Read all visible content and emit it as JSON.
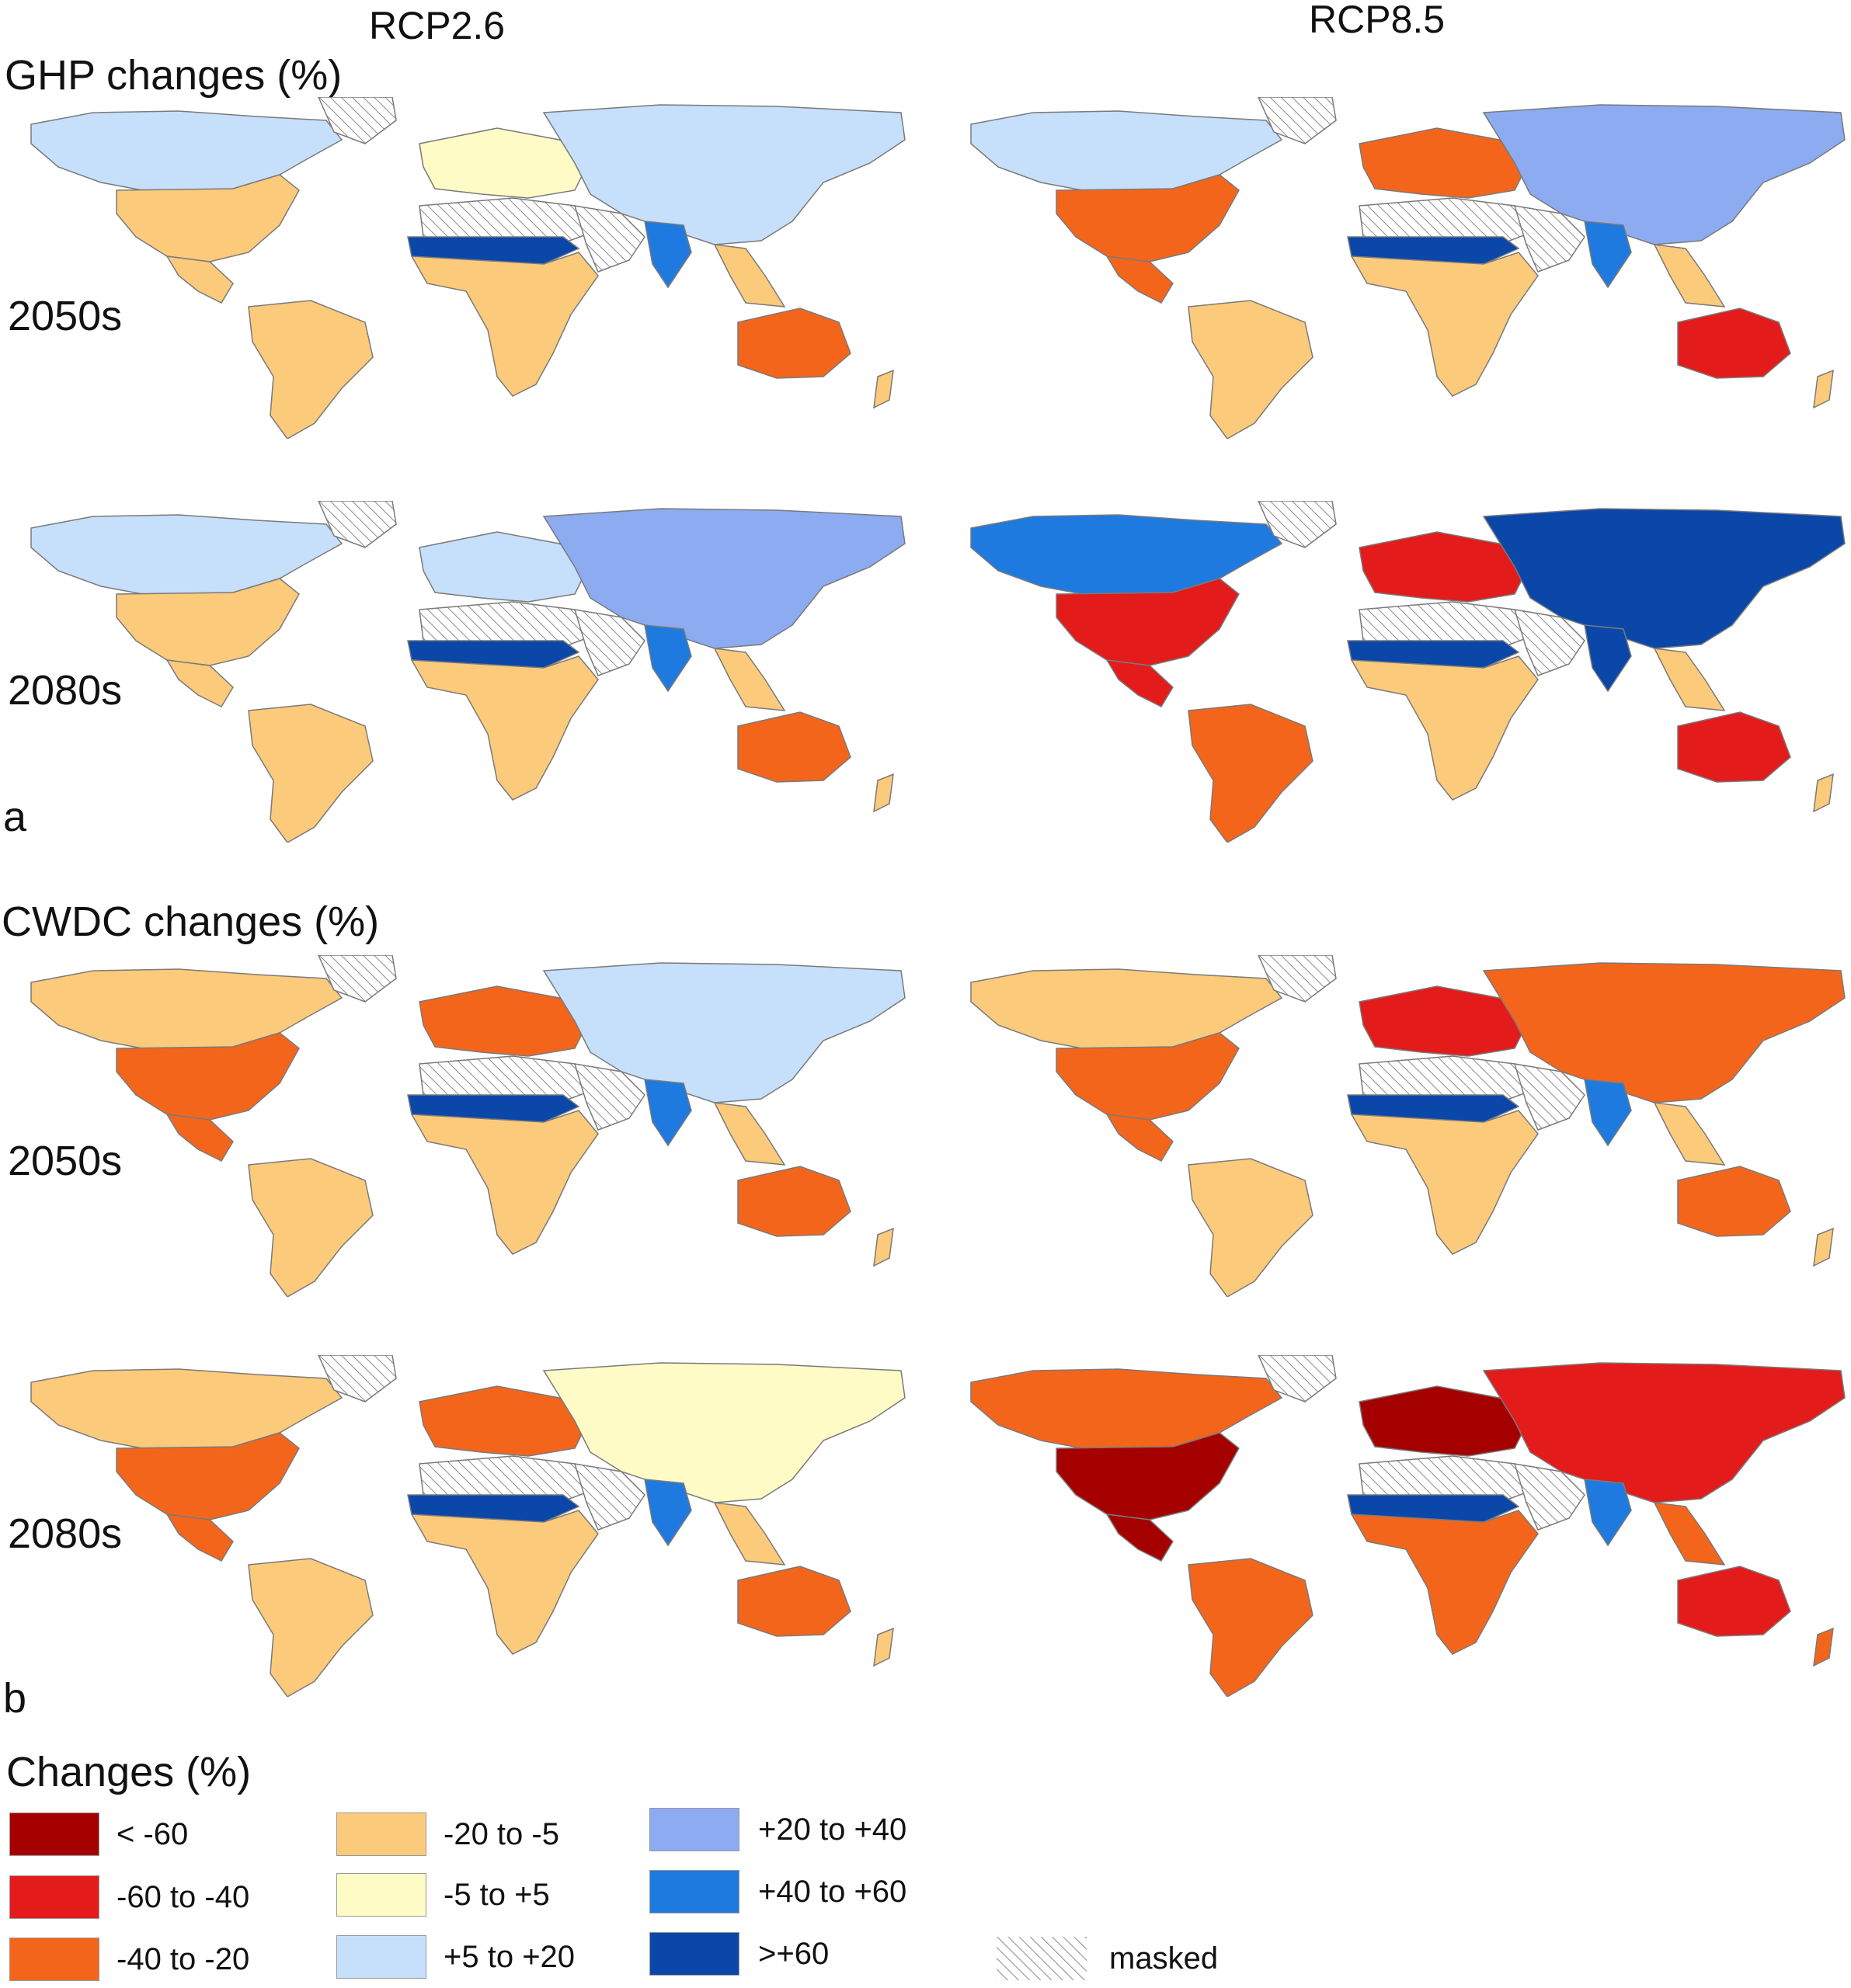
{
  "columns": [
    "RCP2.6",
    "RCP8.5"
  ],
  "sections": [
    {
      "title": "GHP changes (%)",
      "letter": "a",
      "rows": [
        "2050s",
        "2080s"
      ]
    },
    {
      "title": "CWDC changes (%)",
      "letter": "b",
      "rows": [
        "2050s",
        "2080s"
      ]
    }
  ],
  "legend": {
    "title": "Changes (%)",
    "classes": [
      {
        "label": "< -60",
        "color": "#a50000"
      },
      {
        "label": "-60 to -40",
        "color": "#e31b1b"
      },
      {
        "label": "-40 to -20",
        "color": "#f4651c"
      },
      {
        "label": "-20 to -5",
        "color": "#fbca7b"
      },
      {
        "label": "-5 to +5",
        "color": "#fefbc6"
      },
      {
        "label": "+5 to +20",
        "color": "#c6dffb"
      },
      {
        "label": "+20 to +40",
        "color": "#8cabf0"
      },
      {
        "label": "+40 to +60",
        "color": "#1f7adf"
      },
      {
        "label": ">+60",
        "color": "#0b47a8"
      }
    ],
    "masked_label": "masked"
  },
  "maps": [
    {
      "id": "ghp-2050-rcp26",
      "na": "#c6dffb",
      "us": "#fbca7b",
      "sa": "#fbca7b",
      "eu": "#fefbc6",
      "as": "#c6dffb",
      "af": "#fbca7b",
      "sahel": "#0b47a8",
      "au": "#f4651c",
      "in": "#1f7adf"
    },
    {
      "id": "ghp-2050-rcp85",
      "na": "#c6dffb",
      "us": "#f4651c",
      "sa": "#fbca7b",
      "eu": "#f4651c",
      "as": "#8cabf0",
      "af": "#fbca7b",
      "sahel": "#0b47a8",
      "au": "#e31b1b",
      "in": "#1f7adf"
    },
    {
      "id": "ghp-2080-rcp26",
      "na": "#c6dffb",
      "us": "#fbca7b",
      "sa": "#fbca7b",
      "eu": "#c6dffb",
      "as": "#8cabf0",
      "af": "#fbca7b",
      "sahel": "#0b47a8",
      "au": "#f4651c",
      "in": "#1f7adf"
    },
    {
      "id": "ghp-2080-rcp85",
      "na": "#1f7adf",
      "us": "#e31b1b",
      "sa": "#f4651c",
      "eu": "#e31b1b",
      "as": "#0b47a8",
      "af": "#fbca7b",
      "sahel": "#0b47a8",
      "au": "#e31b1b",
      "in": "#0b47a8"
    },
    {
      "id": "cwdc-2050-rcp26",
      "na": "#fbca7b",
      "us": "#f4651c",
      "sa": "#fbca7b",
      "eu": "#f4651c",
      "as": "#c6dffb",
      "af": "#fbca7b",
      "sahel": "#0b47a8",
      "au": "#f4651c",
      "in": "#1f7adf"
    },
    {
      "id": "cwdc-2050-rcp85",
      "na": "#fbca7b",
      "us": "#f4651c",
      "sa": "#fbca7b",
      "eu": "#e31b1b",
      "as": "#f4651c",
      "af": "#fbca7b",
      "sahel": "#0b47a8",
      "au": "#f4651c",
      "in": "#1f7adf"
    },
    {
      "id": "cwdc-2080-rcp26",
      "na": "#fbca7b",
      "us": "#f4651c",
      "sa": "#fbca7b",
      "eu": "#f4651c",
      "as": "#fefbc6",
      "af": "#fbca7b",
      "sahel": "#0b47a8",
      "au": "#f4651c",
      "in": "#1f7adf"
    },
    {
      "id": "cwdc-2080-rcp85",
      "na": "#f4651c",
      "us": "#a50000",
      "sa": "#f4651c",
      "eu": "#a50000",
      "as": "#e31b1b",
      "af": "#f4651c",
      "sahel": "#0b47a8",
      "au": "#e31b1b",
      "in": "#1f7adf"
    }
  ]
}
